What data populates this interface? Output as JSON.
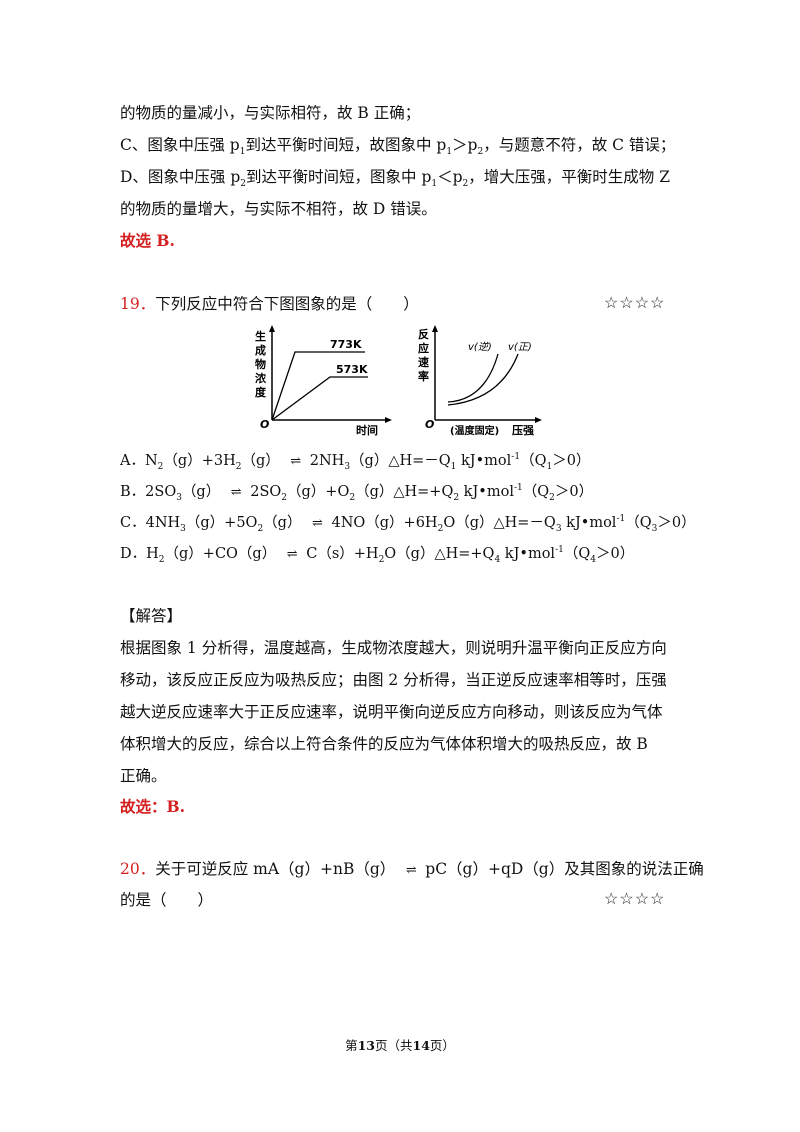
{
  "top": {
    "l1": "的物质的量减小，与实际相符，故 B 正确；",
    "l2_pre": "C、图象中压强 p",
    "l2_s1": "1",
    "l2_mid": "到达平衡时间短，故图象中 p",
    "l2_s2": "1",
    "l2_mid2": "＞p",
    "l2_s3": "2",
    "l2_end": "，与题意不符，故 C 错误；",
    "l3_pre": "D、图象中压强 p",
    "l3_s1": "2",
    "l3_mid": "到达平衡时间短，图象中 p",
    "l3_s2": "1",
    "l3_mid2": "＜p",
    "l3_s3": "2",
    "l3_end": "，增大压强，平衡时生成物 Z",
    "l4": "的物质的量增大，与实际不相符，故 D 错误。",
    "answer": "故选 B."
  },
  "q19": {
    "number": "19．",
    "stem": "下列反应中符合下图图象的是（　　）",
    "stars": "☆☆☆☆",
    "fig1": {
      "ylabel": [
        "生",
        "成",
        "物",
        "浓",
        "度"
      ],
      "xlabel": "时间",
      "origin": "O",
      "labels": [
        "773K",
        "573K"
      ]
    },
    "fig2": {
      "ylabel": [
        "反",
        "应",
        "速",
        "率"
      ],
      "xlabel": "压强",
      "note": "(温度固定)",
      "origin": "O",
      "labels": [
        "v(逆)",
        "v(正)"
      ]
    },
    "options": {
      "A": [
        "A．N",
        "2",
        "（g）+3H",
        "2",
        "（g）",
        "2NH",
        "3",
        "（g）△H=－Q",
        "1",
        " kJ•mol",
        "-1",
        "（Q",
        "1",
        "＞0）"
      ],
      "B": [
        "B．2SO",
        "3",
        "（g）",
        "2SO",
        "2",
        "（g）+O",
        "2",
        "（g）△H=+Q",
        "2",
        " kJ•mol",
        "-1",
        "（Q",
        "2",
        "＞0）"
      ],
      "C": [
        "C．4NH",
        "3",
        "（g）+5O",
        "2",
        "（g）",
        "4NO（g）+6H",
        "2",
        "O（g）△H=－Q",
        "3",
        " kJ•mol",
        "-1",
        "（Q",
        "3",
        "＞0）"
      ],
      "D": [
        "D．H",
        "2",
        "（g）+CO（g）",
        "C（s）+H",
        "2",
        "O（g）△H=+Q",
        "4",
        " kJ•mol",
        "-1",
        "（Q",
        "4",
        "＞0）"
      ]
    },
    "arrow": "⇌"
  },
  "solution": {
    "heading": "【解答】",
    "lines": [
      "根据图象 1 分析得，温度越高，生成物浓度越大，则说明升温平衡向正反应方向",
      "移动，该反应正反应为吸热反应；由图 2 分析得，当正逆反应速率相等时，压强",
      "越大逆反应速率大于正反应速率，说明平衡向逆反应方向移动，则该反应为气体",
      "体积增大的反应，综合以上符合条件的反应为气体体积增大的吸热反应，故 B",
      "正确。"
    ],
    "answer": "故选：B."
  },
  "q20": {
    "number": "20．",
    "line1": "关于可逆反应 mA（g）+nB（g）",
    "line1b": "pC（g）+qD（g）及其图象的说法正确",
    "line2": "的是（　　）",
    "stars": "☆☆☆☆"
  },
  "footer": {
    "pre": "第",
    "page": "13",
    "mid": "页（共",
    "total": "14",
    "post": "页）"
  }
}
